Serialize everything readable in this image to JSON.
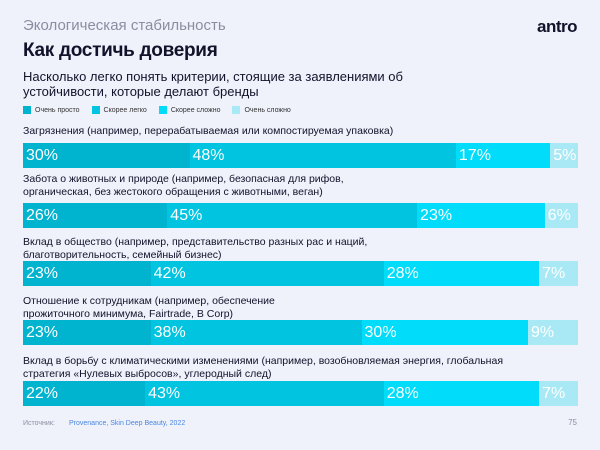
{
  "header": {
    "section": "Экологическая стабильность",
    "logo": "antro",
    "title": "Как достичь доверия"
  },
  "footer": {
    "source_label": "Источник:",
    "source": "Provenance, Skin Deep Beauty, 2022",
    "page": "75"
  },
  "chart_data": {
    "type": "bar",
    "orientation": "horizontal-stacked-100",
    "title": "Насколько легко понять критерии, стоящие за заявлениями об устойчивости, которые делают бренды",
    "legend_position": "top-left",
    "series": [
      {
        "name": "Очень просто",
        "color": "#00b3cf",
        "values": [
          30,
          26,
          23,
          23,
          22
        ]
      },
      {
        "name": "Скорее легко",
        "color": "#00c4e0",
        "values": [
          48,
          45,
          42,
          38,
          43
        ]
      },
      {
        "name": "Скорее сложно",
        "color": "#00dcfa",
        "values": [
          17,
          23,
          28,
          30,
          28
        ]
      },
      {
        "name": "Очень сложно",
        "color": "#a9e9f5",
        "values": [
          5,
          6,
          7,
          9,
          7
        ]
      }
    ],
    "categories": [
      "Загрязнения (например, перерабатываемая или компостируемая упаковка)",
      "Забота о животных и природе (например, безопасная для рифов, органическая, без жестокого обращения с животными, веган)",
      "Вклад в общество (например, представительство разных рас и наций, благотворительность, семейный бизнес)",
      "Отношение к сотрудникам (например, обеспечение прожиточного минимума, Fairtrade, B Corp)",
      "Вклад в борьбу с климатическими изменениями (например, возобновляемая энергия, глобальная стратегия «Нулевых выбросов», углеродный след)"
    ],
    "value_suffix": "%"
  }
}
